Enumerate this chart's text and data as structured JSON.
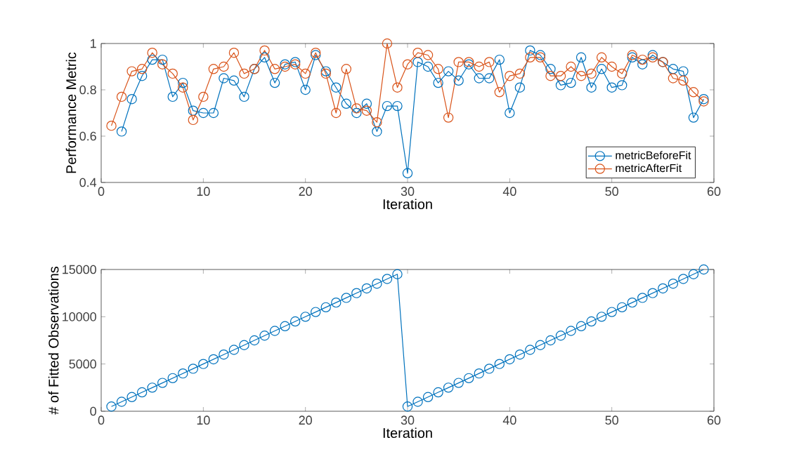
{
  "chart_data": [
    {
      "type": "line",
      "xlabel": "Iteration",
      "ylabel": "Performance Metric",
      "xlim": [
        0,
        60
      ],
      "ylim": [
        0.4,
        1
      ],
      "xticks": [
        0,
        10,
        20,
        30,
        40,
        50,
        60
      ],
      "yticks": [
        0.4,
        0.6,
        0.8,
        1
      ],
      "marker": "circle",
      "line_style": "solid",
      "legend": "bottom right",
      "grid": false,
      "series": [
        {
          "name": "metricBeforeFit",
          "color": "#0072bd",
          "x": [
            2,
            3,
            4,
            5,
            6,
            7,
            8,
            9,
            10,
            11,
            12,
            13,
            14,
            15,
            16,
            17,
            18,
            19,
            20,
            21,
            22,
            23,
            24,
            25,
            26,
            27,
            28,
            29,
            30,
            31,
            32,
            33,
            34,
            35,
            36,
            37,
            38,
            39,
            40,
            41,
            42,
            43,
            44,
            45,
            46,
            47,
            48,
            49,
            50,
            51,
            52,
            53,
            54,
            55,
            56,
            57,
            58,
            59
          ],
          "values": [
            0.62,
            0.76,
            0.86,
            0.93,
            0.93,
            0.77,
            0.83,
            0.71,
            0.7,
            0.7,
            0.85,
            0.84,
            0.77,
            0.89,
            0.94,
            0.83,
            0.91,
            0.92,
            0.8,
            0.95,
            0.88,
            0.81,
            0.74,
            0.7,
            0.74,
            0.62,
            0.73,
            0.73,
            0.44,
            0.92,
            0.9,
            0.83,
            0.88,
            0.84,
            0.91,
            0.85,
            0.85,
            0.93,
            0.7,
            0.81,
            0.97,
            0.95,
            0.89,
            0.82,
            0.83,
            0.94,
            0.81,
            0.89,
            0.81,
            0.82,
            0.94,
            0.91,
            0.95,
            0.92,
            0.89,
            0.88,
            0.68,
            0.76
          ]
        },
        {
          "name": "metricAfterFit",
          "color": "#d95319",
          "x": [
            1,
            2,
            3,
            4,
            5,
            6,
            7,
            8,
            9,
            10,
            11,
            12,
            13,
            14,
            15,
            16,
            17,
            18,
            19,
            20,
            21,
            22,
            23,
            24,
            25,
            26,
            27,
            28,
            29,
            30,
            31,
            32,
            33,
            34,
            35,
            36,
            37,
            38,
            39,
            40,
            41,
            42,
            43,
            44,
            45,
            46,
            47,
            48,
            49,
            50,
            51,
            52,
            53,
            54,
            55,
            56,
            57,
            58,
            59
          ],
          "values": [
            0.645,
            0.77,
            0.88,
            0.89,
            0.96,
            0.91,
            0.87,
            0.81,
            0.67,
            0.77,
            0.89,
            0.9,
            0.96,
            0.87,
            0.89,
            0.97,
            0.89,
            0.9,
            0.91,
            0.87,
            0.96,
            0.87,
            0.7,
            0.89,
            0.72,
            0.71,
            0.66,
            1.0,
            0.81,
            0.91,
            0.96,
            0.95,
            0.89,
            0.68,
            0.92,
            0.92,
            0.9,
            0.92,
            0.79,
            0.86,
            0.87,
            0.94,
            0.94,
            0.86,
            0.86,
            0.9,
            0.86,
            0.87,
            0.94,
            0.9,
            0.87,
            0.95,
            0.93,
            0.94,
            0.92,
            0.85,
            0.84,
            0.79,
            0.75
          ]
        }
      ]
    },
    {
      "type": "line",
      "xlabel": "Iteration",
      "ylabel": "# of Fitted Observations",
      "xlim": [
        0,
        60
      ],
      "ylim": [
        0,
        15000
      ],
      "xticks": [
        0,
        10,
        20,
        30,
        40,
        50,
        60
      ],
      "yticks": [
        0,
        5000,
        10000,
        15000
      ],
      "marker": "circle",
      "line_style": "solid",
      "grid": false,
      "series": [
        {
          "color": "#0072bd",
          "x": [
            1,
            2,
            3,
            4,
            5,
            6,
            7,
            8,
            9,
            10,
            11,
            12,
            13,
            14,
            15,
            16,
            17,
            18,
            19,
            20,
            21,
            22,
            23,
            24,
            25,
            26,
            27,
            28,
            29,
            30,
            31,
            32,
            33,
            34,
            35,
            36,
            37,
            38,
            39,
            40,
            41,
            42,
            43,
            44,
            45,
            46,
            47,
            48,
            49,
            50,
            51,
            52,
            53,
            54,
            55,
            56,
            57,
            58,
            59
          ],
          "values": [
            500,
            1000,
            1500,
            2000,
            2500,
            3000,
            3500,
            4000,
            4500,
            5000,
            5500,
            6000,
            6500,
            7000,
            7500,
            8000,
            8500,
            9000,
            9500,
            10000,
            10500,
            11000,
            11500,
            12000,
            12500,
            13000,
            13500,
            14000,
            14500,
            500,
            1000,
            1500,
            2000,
            2500,
            3000,
            3500,
            4000,
            4500,
            5000,
            5500,
            6000,
            6500,
            7000,
            7500,
            8000,
            8500,
            9000,
            9500,
            10000,
            10500,
            11000,
            11500,
            12000,
            12500,
            13000,
            13500,
            14000,
            14500,
            15000
          ]
        }
      ]
    }
  ]
}
